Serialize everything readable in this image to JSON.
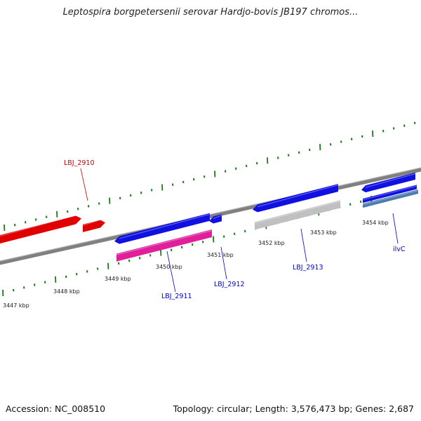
{
  "title": "Leptospira borgpetersenii serovar Hardjo-bovis JB197 chromos...",
  "footer": {
    "accession": "Accession: NC_008510",
    "stats": "Topology: circular; Length: 3,576,473 bp; Genes: 2,687"
  },
  "ruler": {
    "labels": [
      "3447 kbp",
      "3448 kbp",
      "3449 kbp",
      "3450 kbp",
      "3451 kbp",
      "3452 kbp",
      "3453 kbp",
      "3454 kbp"
    ]
  },
  "gene_labels": [
    {
      "id": "lbj2910",
      "text": "LBJ_2910",
      "color": "#cc0000"
    },
    {
      "id": "lbj2911",
      "text": "LBJ_2911",
      "color": "#0000cc"
    },
    {
      "id": "lbj2912",
      "text": "LBJ_2912",
      "color": "#0000cc"
    },
    {
      "id": "lbj2913",
      "text": "LBJ_2913",
      "color": "#0000cc"
    },
    {
      "id": "ilvc",
      "text": "ilvC",
      "color": "#0000cc"
    }
  ],
  "colors": {
    "backbone": "#808080",
    "tick": "#1a7a1a",
    "forward_gene": "#e00000",
    "reverse_gene": "#1010e0",
    "pink_feature": "#e0209a",
    "grey_feature": "#c0c0c0",
    "steelblue_feature": "#4a7ab0"
  }
}
